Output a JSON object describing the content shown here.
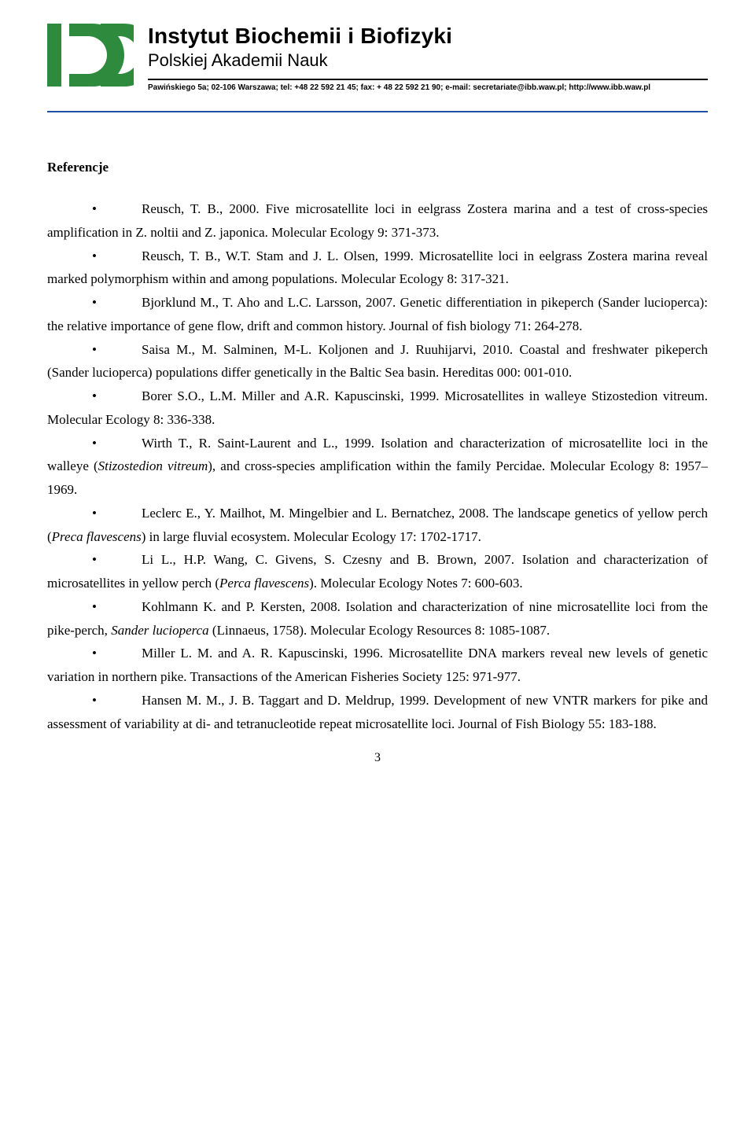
{
  "header": {
    "logo_color": "#2e8b3d",
    "institute_title": "Instytut Biochemii i Biofizyki",
    "institute_subtitle": "Polskiej Akademii Nauk",
    "contact": "Pawińskiego 5a; 02-106 Warszawa; tel: +48 22 592 21 45; fax: + 48 22 592 21 90; e-mail: secretariate@ibb.waw.pl; http://www.ibb.waw.pl",
    "divider_color": "#1e4fa0"
  },
  "section_heading": "Referencje",
  "bullet_char": "•",
  "references": [
    {
      "pre": "Reusch, T. B., 2000. Five microsatellite loci in eelgrass Zostera marina and a test of cross-species amplification in Z. noltii and Z. japonica. Molecular Ecology 9: 371-373."
    },
    {
      "pre": "Reusch, T. B., W.T. Stam and J. L. Olsen, 1999. Microsatellite loci in eelgrass Zostera marina reveal marked polymorphism within and among populations. Molecular Ecology 8: 317-321."
    },
    {
      "pre": "Bjorklund M., T. Aho and L.C. Larsson, 2007. Genetic differentiation in pikeperch (Sander lucioperca): the relative importance of gene flow, drift and common history. Journal of fish biology 71: 264-278."
    },
    {
      "pre": "Saisa M., M. Salminen, M-L. Koljonen and J. Ruuhijarvi, 2010. Coastal and freshwater pikeperch (Sander lucioperca) populations differ genetically in the Baltic Sea basin. Hereditas 000: 001-010."
    },
    {
      "pre": "Borer S.O., L.M. Miller and A.R. Kapuscinski, 1999. Microsatellites in walleye Stizostedion vitreum. Molecular Ecology 8: 336-338."
    },
    {
      "pre": "Wirth T., R. Saint-Laurent and L., 1999. Isolation and characterization of microsatellite loci in the walleye (",
      "italic": "Stizostedion vitreum",
      "post": "), and cross-species amplification within the family Percidae. Molecular Ecology 8: 1957–1969."
    },
    {
      "pre": "Leclerc E., Y. Mailhot, M. Mingelbier and L. Bernatchez, 2008. The landscape genetics of yellow perch (",
      "italic": "Preca flavescens",
      "post": ") in large fluvial ecosystem. Molecular Ecology 17: 1702-1717."
    },
    {
      "pre": "Li L., H.P. Wang, C. Givens, S. Czesny and B. Brown, 2007. Isolation and characterization of microsatellites in yellow perch (",
      "italic": "Perca flavescens",
      "post": "). Molecular Ecology Notes 7: 600-603."
    },
    {
      "pre": "Kohlmann K. and P. Kersten, 2008. Isolation and characterization of nine microsatellite loci from the pike-perch, ",
      "italic": "Sander lucioperca",
      "post": " (Linnaeus, 1758). Molecular Ecology Resources 8: 1085-1087."
    },
    {
      "pre": "Miller L. M. and A. R. Kapuscinski, 1996. Microsatellite DNA markers reveal new levels of genetic variation in northern pike. Transactions of the American Fisheries Society 125: 971-977."
    },
    {
      "pre": "Hansen M. M., J. B. Taggart and D. Meldrup, 1999. Development of new VNTR markers for pike and assessment of variability at di- and tetranucleotide repeat microsatellite loci. Journal of Fish Biology 55: 183-188."
    }
  ],
  "page_number": "3"
}
